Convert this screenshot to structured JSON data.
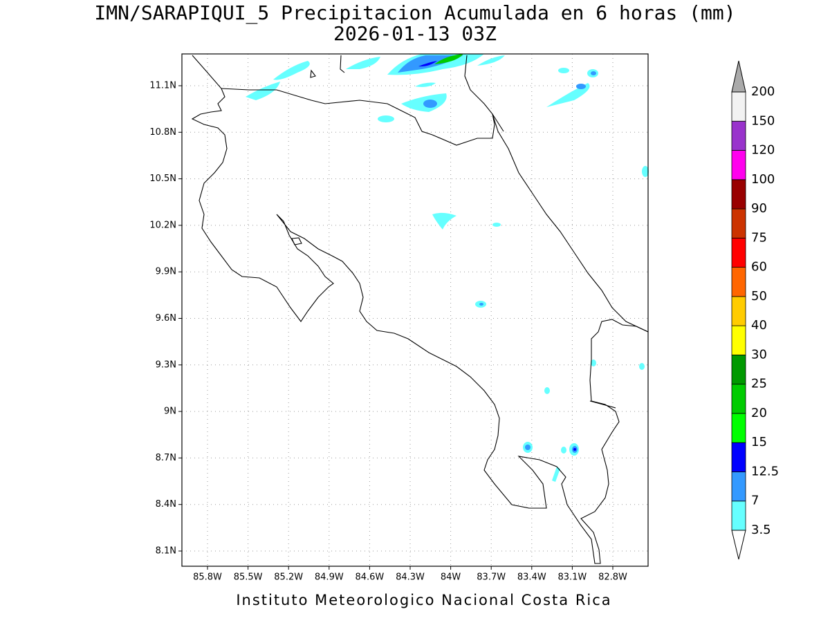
{
  "title": "IMN/SARAPIQUI_5 Precipitacion Acumulada en 6 horas (mm)",
  "subtitle": "2026-01-13 03Z",
  "footer": "Instituto Meteorologico Nacional Costa Rica",
  "x_labels": [
    "85.8W",
    "85.5W",
    "85.2W",
    "84.9W",
    "84.6W",
    "84.3W",
    "84W",
    "83.7W",
    "83.4W",
    "83.1W",
    "82.8W"
  ],
  "y_labels": [
    "11.1N",
    "10.8N",
    "10.5N",
    "10.2N",
    "9.9N",
    "9.6N",
    "9.3N",
    "9N",
    "8.7N",
    "8.4N",
    "8.1N"
  ],
  "colorbar": {
    "labels": [
      "3.5",
      "7",
      "12.5",
      "15",
      "20",
      "25",
      "30",
      "40",
      "50",
      "60",
      "75",
      "90",
      "100",
      "120",
      "150",
      "200"
    ],
    "colors": [
      "#66ffff",
      "#3399ff",
      "#0000ff",
      "#00ff00",
      "#00cc00",
      "#009900",
      "#ffff00",
      "#ffcc00",
      "#ff6600",
      "#ff0000",
      "#cc3300",
      "#990000",
      "#ff00ee",
      "#9933cc",
      "#f2f2f2"
    ],
    "under_color": "#ffffff",
    "over_color": "#aaaaaa"
  }
}
